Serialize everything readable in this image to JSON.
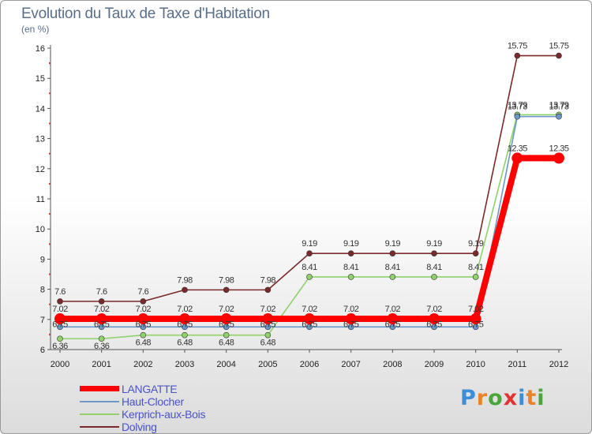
{
  "chart_data": {
    "type": "line",
    "title": "Evolution du Taux de Taxe d'Habitation",
    "unit_label": "(en %)",
    "x": [
      "2000",
      "2001",
      "2002",
      "2003",
      "2004",
      "2005",
      "2006",
      "2007",
      "2008",
      "2009",
      "2010",
      "2011",
      "2012"
    ],
    "ylim": [
      6,
      16
    ],
    "yticks": [
      "6",
      "7",
      "8",
      "9",
      "10",
      "11",
      "12",
      "13",
      "14",
      "15",
      "16"
    ],
    "series": [
      {
        "name": "LANGATTE",
        "color": "#ff0000",
        "values": [
          7.02,
          7.02,
          7.02,
          7.02,
          7.02,
          7.02,
          7.02,
          7.02,
          7.02,
          7.02,
          7.02,
          12.35,
          12.35
        ],
        "labels": [
          "7.02",
          "7.02",
          "7.02",
          "7.02",
          "7.02",
          "7.02",
          "7.02",
          "7.02",
          "7.02",
          "7.02",
          "7.02",
          "12.35",
          "12.35"
        ]
      },
      {
        "name": "Haut-Clocher",
        "color": "#6b97c9",
        "values": [
          6.75,
          6.75,
          6.75,
          6.75,
          6.75,
          6.75,
          6.75,
          6.75,
          6.75,
          6.75,
          6.75,
          13.73,
          13.73
        ],
        "labels": [
          "6.75",
          "6.75",
          "6.75",
          "6.75",
          "6.75",
          "6.75",
          "6.75",
          "6.75",
          "6.75",
          "6.75",
          "6.75",
          "13.73",
          "13.73"
        ]
      },
      {
        "name": "Kerprich-aux-Bois",
        "color": "#8fd16a",
        "values": [
          6.36,
          6.36,
          6.48,
          6.48,
          6.48,
          6.48,
          8.41,
          8.41,
          8.41,
          8.41,
          8.41,
          13.79,
          13.79
        ],
        "labels": [
          "6.36",
          "6.36",
          "6.48",
          "6.48",
          "6.48",
          "6.48",
          "8.41",
          "8.41",
          "8.41",
          "8.41",
          "8.41",
          "13.79",
          "13.79"
        ]
      },
      {
        "name": "Dolving",
        "color": "#7a2a2a",
        "values": [
          7.6,
          7.6,
          7.6,
          7.98,
          7.98,
          7.98,
          9.19,
          9.19,
          9.19,
          9.19,
          9.19,
          15.75,
          15.75
        ],
        "labels": [
          "7.6",
          "7.6",
          "7.6",
          "7.98",
          "7.98",
          "7.98",
          "9.19",
          "9.19",
          "9.19",
          "9.19",
          "9.19",
          "15.75",
          "15.75"
        ]
      }
    ]
  },
  "logo": {
    "text": "Proxiti",
    "letter_colors": [
      "#3d8ed8",
      "#e8832a",
      "#4aa63c",
      "#e03434",
      "#3d8ed8",
      "#e8832a",
      "#4aa63c"
    ]
  }
}
